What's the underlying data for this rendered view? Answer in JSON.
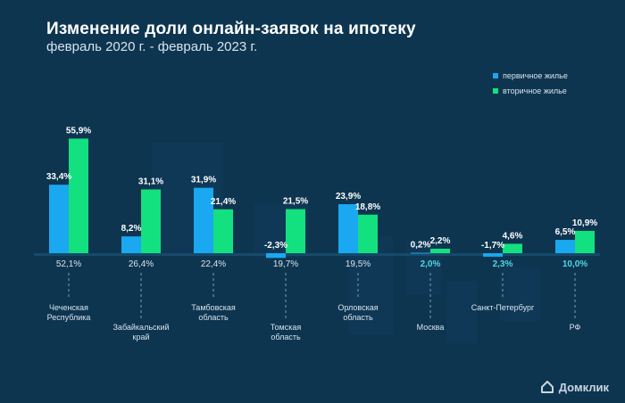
{
  "header": {
    "title": "Изменение доли онлайн-заявок на ипотеку",
    "subtitle": "февраль 2020 г. - февраль 2023 г."
  },
  "brand": {
    "name": "Домклик",
    "icon": "house-logo-icon"
  },
  "colors": {
    "background": "#0d3550",
    "primary": "#1aa8f0",
    "secondary": "#13e07f",
    "highlight": "#4fd8e6",
    "text": "#ffffff",
    "muted": "#d7e3ec"
  },
  "chart_data": {
    "type": "bar",
    "categories": [
      "Чеченская Республика",
      "Забайкальский край",
      "Тамбовская область",
      "Томская область",
      "Орловская область",
      "Москва",
      "Санкт-Петербург",
      "РФ"
    ],
    "series": [
      {
        "name": "первичное жилье",
        "values": [
          33.4,
          8.2,
          31.9,
          -2.3,
          23.9,
          0.2,
          -1.7,
          6.5
        ],
        "labels": [
          "33,4%",
          "8,2%",
          "31,9%",
          "-2,3%",
          "23,9%",
          "0,2%",
          "-1,7%",
          "6,5%"
        ]
      },
      {
        "name": "вторичное жилье",
        "values": [
          55.9,
          31.1,
          21.4,
          21.5,
          18.8,
          2.2,
          4.6,
          10.9
        ],
        "labels": [
          "55,9%",
          "31,1%",
          "21,4%",
          "21,5%",
          "18,8%",
          "2,2%",
          "4,6%",
          "10,9%"
        ]
      }
    ],
    "totals": [
      "52,1%",
      "26,4%",
      "22,4%",
      "19,7%",
      "19,5%",
      "2,0%",
      "2,3%",
      "10,0%"
    ],
    "highlight_totals": [
      false,
      false,
      false,
      false,
      false,
      true,
      true,
      true
    ],
    "category_labels": [
      [
        "Чеченская",
        "Республика"
      ],
      [
        "Забайкальский",
        "край"
      ],
      [
        "Тамбовская",
        "область"
      ],
      [
        "Томская",
        "область"
      ],
      [
        "Орловская",
        "область"
      ],
      [
        "Москва"
      ],
      [
        "Санкт-Петербург"
      ],
      [
        "РФ"
      ]
    ],
    "legend_position": "top-right",
    "grid": false
  }
}
